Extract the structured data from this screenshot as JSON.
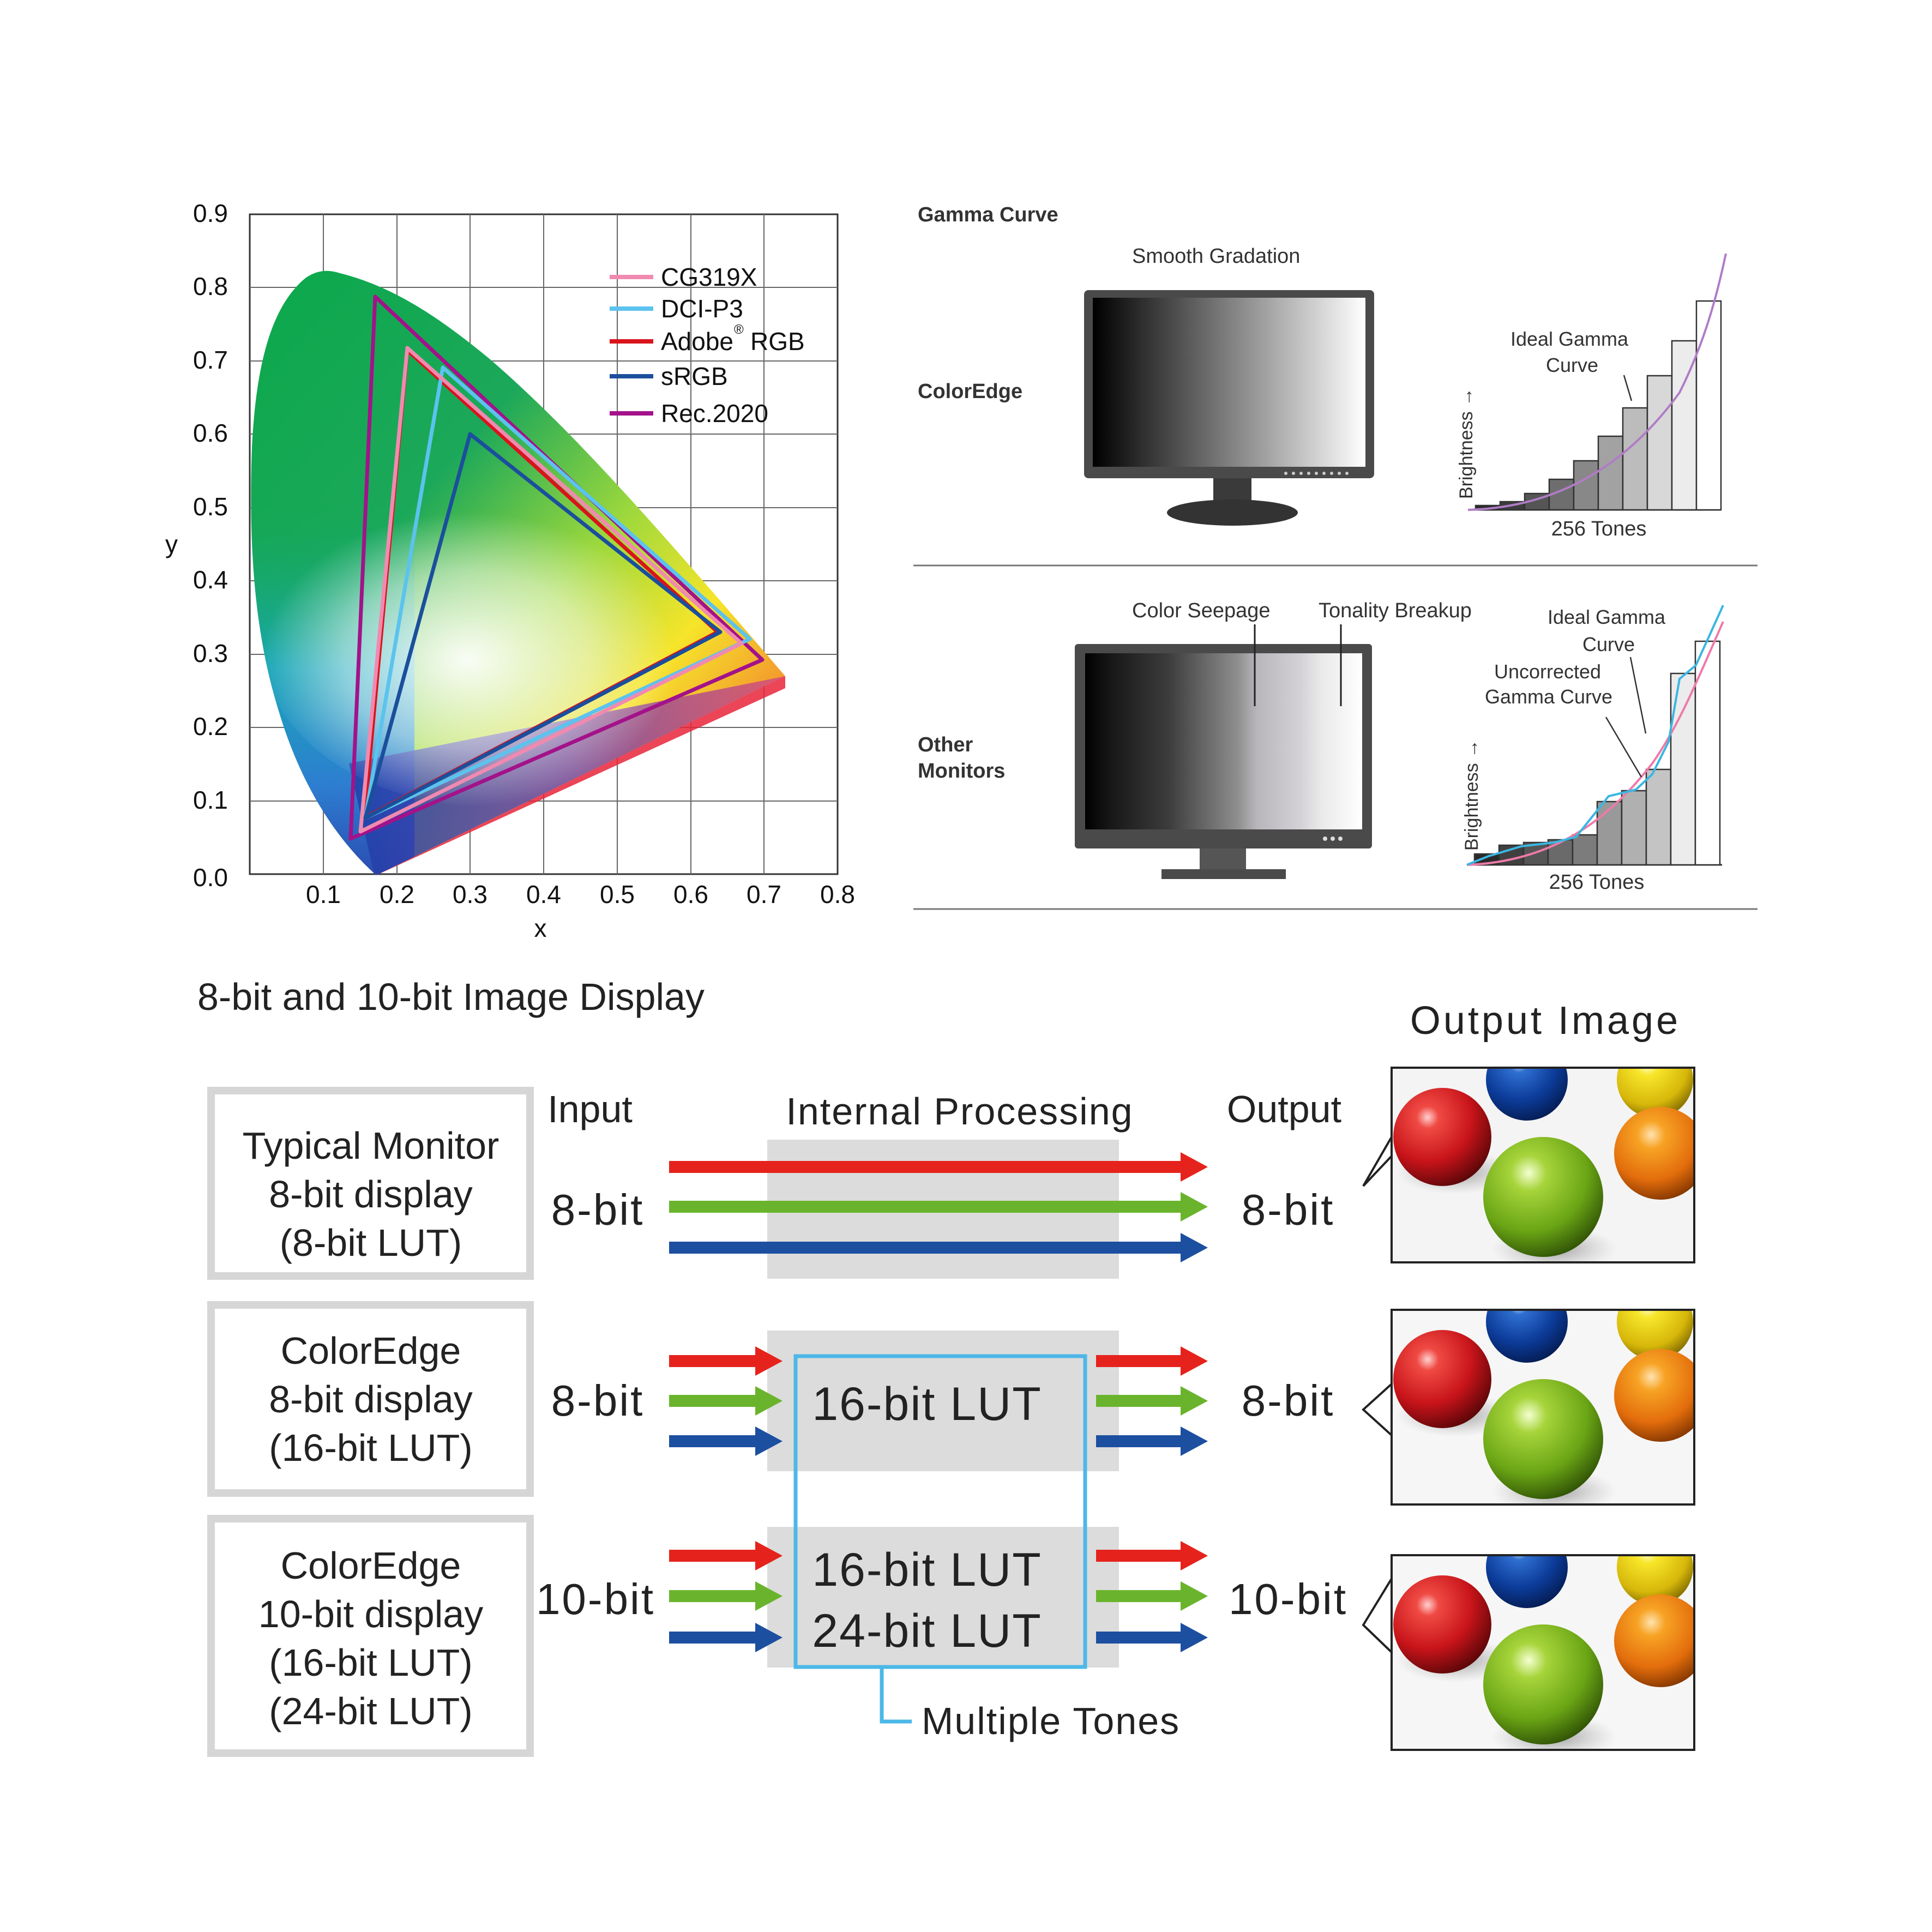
{
  "chromaticity": {
    "x_label": "x",
    "y_label": "y",
    "x_ticks": [
      "0.1",
      "0.2",
      "0.3",
      "0.4",
      "0.5",
      "0.6",
      "0.7",
      "0.8"
    ],
    "y_ticks": [
      "0.0",
      "0.1",
      "0.2",
      "0.3",
      "0.4",
      "0.5",
      "0.6",
      "0.7",
      "0.8",
      "0.9"
    ],
    "legend": [
      "CG319X",
      "DCI-P3",
      "Adobe",
      "RGB",
      "sRGB",
      "Rec.2020"
    ],
    "legend_reg": "®",
    "colors": {
      "CG319X": "#f08ab0",
      "DCI-P3": "#5bc3ee",
      "Adobe RGB": "#d9141c",
      "sRGB": "#1b4f9c",
      "Rec.2020": "#a3128a"
    }
  },
  "gamma": {
    "title": "Gamma Curve",
    "smooth": "Smooth Gradation",
    "coloredge": "ColorEdge",
    "other1": "Other",
    "other2": "Monitors",
    "seepage": "Color Seepage",
    "breakup": "Tonality Breakup",
    "ideal1": "Ideal Gamma",
    "ideal2": "Curve",
    "uncorr1": "Uncorrected",
    "uncorr2": "Gamma Curve",
    "brightness": "Brightness →",
    "tones": "256 Tones"
  },
  "bit": {
    "title": "8-bit and 10-bit Image Display",
    "output_image": "Output Image",
    "input": "Input",
    "internal": "Internal Processing",
    "output": "Output",
    "row1": [
      "Typical Monitor",
      "8-bit display",
      "(8-bit LUT)"
    ],
    "row2": [
      "ColorEdge",
      "8-bit display",
      "(16-bit LUT)"
    ],
    "row3": [
      "ColorEdge",
      "10-bit display",
      "(16-bit LUT)",
      "(24-bit LUT)"
    ],
    "in8": "8-bit",
    "in10": "10-bit",
    "out8": "8-bit",
    "out10": "10-bit",
    "lut16": "16-bit LUT",
    "lut24": "24-bit LUT",
    "multiple": "Multiple Tones",
    "arrow_colors": [
      "#e5231c",
      "#6ab42d",
      "#1c4fa0"
    ]
  }
}
